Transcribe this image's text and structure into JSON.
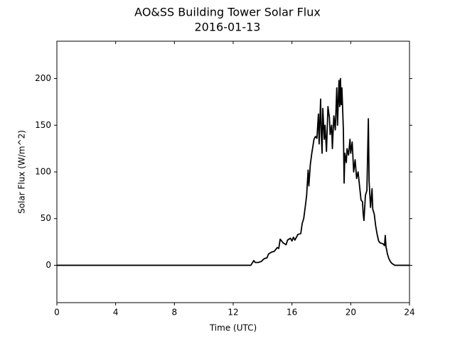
{
  "chart_data": {
    "type": "line",
    "title": "AO&SS Building Tower Solar Flux",
    "subtitle": "2016-01-13",
    "x_label": "Time (UTC)",
    "y_label": "Solar Flux (W/m^2)",
    "xlim": [
      0,
      24
    ],
    "xticks": [
      0,
      4,
      8,
      12,
      16,
      20,
      24
    ],
    "ylim": [
      -40,
      240
    ],
    "yticks": [
      0,
      50,
      100,
      150,
      200
    ],
    "grid": false,
    "color": "#000000",
    "x": [
      0,
      13.2,
      13.4,
      13.5,
      13.7,
      13.9,
      14.1,
      14.3,
      14.4,
      14.6,
      14.8,
      15.0,
      15.1,
      15.2,
      15.4,
      15.6,
      15.7,
      15.9,
      16.0,
      16.1,
      16.2,
      16.4,
      16.6,
      16.7,
      16.8,
      16.9,
      17.0,
      17.1,
      17.15,
      17.25,
      17.35,
      17.5,
      17.6,
      17.7,
      17.8,
      17.85,
      17.95,
      18.0,
      18.05,
      18.1,
      18.2,
      18.25,
      18.35,
      18.45,
      18.55,
      18.6,
      18.7,
      18.75,
      18.85,
      18.95,
      19.05,
      19.1,
      19.2,
      19.25,
      19.3,
      19.35,
      19.4,
      19.5,
      19.55,
      19.6,
      19.7,
      19.75,
      19.85,
      19.95,
      20.0,
      20.1,
      20.2,
      20.3,
      20.4,
      20.5,
      20.6,
      20.7,
      20.8,
      20.85,
      20.9,
      21.0,
      21.1,
      21.2,
      21.25,
      21.35,
      21.45,
      21.5,
      21.6,
      21.7,
      21.8,
      21.9,
      22.0,
      22.2,
      22.3,
      22.35,
      22.4,
      22.5,
      22.6,
      22.7,
      22.8,
      23.0,
      24.0
    ],
    "values": [
      0,
      0,
      5,
      3,
      3,
      4,
      7,
      8,
      12,
      14,
      15,
      19,
      18,
      28,
      24,
      22,
      27,
      29,
      26,
      30,
      27,
      33,
      34,
      45,
      50,
      62,
      75,
      102,
      85,
      108,
      120,
      135,
      138,
      136,
      162,
      130,
      178,
      140,
      120,
      168,
      135,
      150,
      122,
      170,
      158,
      140,
      150,
      125,
      160,
      145,
      190,
      150,
      198,
      170,
      200,
      172,
      190,
      145,
      88,
      120,
      110,
      125,
      118,
      135,
      120,
      132,
      100,
      113,
      93,
      100,
      85,
      70,
      68,
      55,
      48,
      75,
      80,
      157,
      90,
      62,
      82,
      60,
      55,
      42,
      33,
      26,
      24,
      23,
      21,
      32,
      20,
      12,
      7,
      4,
      2,
      0,
      0
    ]
  }
}
